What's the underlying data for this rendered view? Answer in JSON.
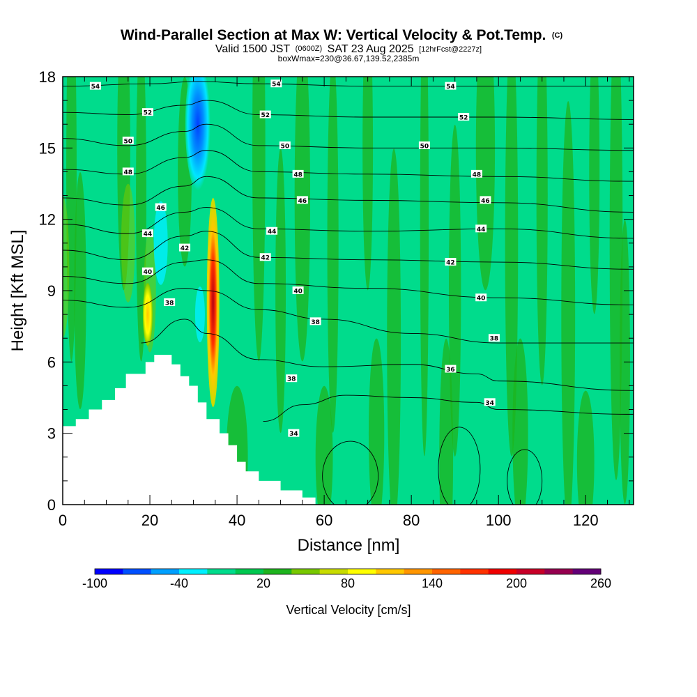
{
  "title": {
    "main": "Wind-Parallel Section at Max W: Vertical Velocity & Pot.Temp.",
    "main_tag": "(C)",
    "valid_a": "Valid 1500 JST",
    "valid_utc": "(0600Z)",
    "valid_b": "SAT 23 Aug 2025",
    "fcst": "[12hrFcst@2227z]",
    "box": "boxWmax=230@36.67,139.52,2385m"
  },
  "chart_data": {
    "type": "heatmap",
    "xlabel": "Distance [nm]",
    "ylabel": "Height [Kft MSL]",
    "xlim": [
      0,
      131
    ],
    "ylim": [
      0,
      18
    ],
    "x_ticks": [
      0,
      20,
      40,
      60,
      80,
      100,
      120
    ],
    "y_ticks": [
      0,
      3,
      6,
      9,
      12,
      15,
      18
    ],
    "x_tick_labels": [
      "0",
      "20",
      "40",
      "60",
      "80",
      "100",
      "120"
    ],
    "y_tick_labels": [
      "0",
      "3",
      "6",
      "9",
      "12",
      "15",
      "18"
    ],
    "background_color": "#00dc8c",
    "terrain_profile": [
      [
        0,
        3.3
      ],
      [
        3,
        3.6
      ],
      [
        6,
        4.0
      ],
      [
        9,
        4.4
      ],
      [
        12,
        4.9
      ],
      [
        14.5,
        5.5
      ],
      [
        17,
        5.5
      ],
      [
        19,
        6.0
      ],
      [
        21,
        6.3
      ],
      [
        24,
        6.3
      ],
      [
        25,
        5.9
      ],
      [
        27,
        5.4
      ],
      [
        29,
        5.0
      ],
      [
        31,
        4.3
      ],
      [
        33,
        3.6
      ],
      [
        36,
        3.0
      ],
      [
        38,
        2.5
      ],
      [
        40,
        1.8
      ],
      [
        42,
        1.4
      ],
      [
        45,
        1.0
      ],
      [
        50,
        0.6
      ],
      [
        55,
        0.3
      ],
      [
        58,
        0.3
      ],
      [
        58,
        0
      ]
    ],
    "velocity_features": [
      {
        "name": "downdraft-upper",
        "x": 31,
        "y": 16.0,
        "value": -90
      },
      {
        "name": "updraft-core",
        "x": 34.5,
        "y": 10.5,
        "value": 230
      },
      {
        "name": "updraft-west",
        "x": 19.5,
        "y": 8.0,
        "value": 80
      },
      {
        "name": "downdraft-west",
        "x": 22,
        "y": 11.0,
        "value": -40
      }
    ],
    "theta_contours": [
      {
        "level": 54,
        "label": "54",
        "points": [
          [
            0,
            17.6
          ],
          [
            20,
            17.7
          ],
          [
            31,
            17.8
          ],
          [
            45,
            17.7
          ],
          [
            70,
            17.6
          ],
          [
            100,
            17.6
          ],
          [
            131,
            17.6
          ]
        ]
      },
      {
        "level": 52,
        "label": "52",
        "points": [
          [
            0,
            16.5
          ],
          [
            15,
            16.4
          ],
          [
            28,
            16.8
          ],
          [
            33,
            17.0
          ],
          [
            45,
            16.4
          ],
          [
            70,
            16.3
          ],
          [
            100,
            16.3
          ],
          [
            131,
            16.2
          ]
        ]
      },
      {
        "level": 50,
        "label": "50",
        "points": [
          [
            0,
            15.4
          ],
          [
            15,
            15.1
          ],
          [
            28,
            15.7
          ],
          [
            33,
            16.0
          ],
          [
            45,
            15.1
          ],
          [
            70,
            15.0
          ],
          [
            100,
            15.0
          ],
          [
            131,
            14.9
          ]
        ]
      },
      {
        "level": 48,
        "label": "48",
        "points": [
          [
            0,
            14.1
          ],
          [
            15,
            13.9
          ],
          [
            28,
            14.6
          ],
          [
            33,
            14.9
          ],
          [
            45,
            14.0
          ],
          [
            70,
            13.9
          ],
          [
            100,
            13.8
          ],
          [
            131,
            13.6
          ]
        ]
      },
      {
        "level": 46,
        "label": "46",
        "points": [
          [
            0,
            12.9
          ],
          [
            15,
            12.6
          ],
          [
            28,
            13.4
          ],
          [
            33,
            13.8
          ],
          [
            45,
            12.9
          ],
          [
            70,
            12.8
          ],
          [
            100,
            12.7
          ],
          [
            131,
            12.3
          ]
        ]
      },
      {
        "level": 44,
        "label": "44",
        "points": [
          [
            0,
            11.8
          ],
          [
            15,
            11.4
          ],
          [
            28,
            12.3
          ],
          [
            33,
            12.5
          ],
          [
            45,
            11.6
          ],
          [
            70,
            11.5
          ],
          [
            100,
            11.6
          ],
          [
            131,
            11.2
          ]
        ]
      },
      {
        "level": 42,
        "label": "42",
        "points": [
          [
            0,
            10.7
          ],
          [
            15,
            10.3
          ],
          [
            28,
            11.3
          ],
          [
            33,
            11.5
          ],
          [
            45,
            10.4
          ],
          [
            70,
            10.3
          ],
          [
            100,
            10.2
          ],
          [
            131,
            9.9
          ]
        ]
      },
      {
        "level": 40,
        "label": "40",
        "points": [
          [
            0,
            9.6
          ],
          [
            15,
            9.3
          ],
          [
            28,
            10.2
          ],
          [
            33,
            10.3
          ],
          [
            45,
            9.3
          ],
          [
            70,
            9.1
          ],
          [
            100,
            8.7
          ],
          [
            131,
            8.4
          ]
        ]
      },
      {
        "level": 38,
        "label": "38",
        "points": [
          [
            0,
            8.6
          ],
          [
            15,
            8.3
          ],
          [
            28,
            9.1
          ],
          [
            33,
            9.0
          ],
          [
            45,
            8.2
          ],
          [
            60,
            7.8
          ],
          [
            80,
            7.2
          ],
          [
            100,
            6.8
          ],
          [
            131,
            6.8
          ]
        ]
      },
      {
        "level": 36,
        "label": "36",
        "points": [
          [
            18,
            6.8
          ],
          [
            28,
            7.8
          ],
          [
            33,
            7.2
          ],
          [
            45,
            6.1
          ],
          [
            60,
            5.8
          ],
          [
            80,
            5.9
          ],
          [
            95,
            5.5
          ],
          [
            100,
            5.2
          ],
          [
            131,
            4.8
          ]
        ]
      },
      {
        "level": 34,
        "label": "34",
        "points": [
          [
            46,
            3.5
          ],
          [
            55,
            4.2
          ],
          [
            65,
            4.6
          ],
          [
            80,
            4.5
          ],
          [
            95,
            4.3
          ],
          [
            100,
            4.0
          ],
          [
            131,
            3.8
          ]
        ]
      }
    ],
    "contour_labels": [
      {
        "text": "54",
        "x": 7.5,
        "y": 17.6
      },
      {
        "text": "54",
        "x": 49,
        "y": 17.7
      },
      {
        "text": "54",
        "x": 89,
        "y": 17.6
      },
      {
        "text": "52",
        "x": 19.5,
        "y": 16.5
      },
      {
        "text": "52",
        "x": 46.5,
        "y": 16.4
      },
      {
        "text": "52",
        "x": 92,
        "y": 16.3
      },
      {
        "text": "50",
        "x": 15,
        "y": 15.3
      },
      {
        "text": "50",
        "x": 51,
        "y": 15.1
      },
      {
        "text": "50",
        "x": 83,
        "y": 15.1
      },
      {
        "text": "48",
        "x": 15,
        "y": 14.0
      },
      {
        "text": "48",
        "x": 54,
        "y": 13.9
      },
      {
        "text": "48",
        "x": 95,
        "y": 13.9
      },
      {
        "text": "46",
        "x": 22.5,
        "y": 12.5
      },
      {
        "text": "46",
        "x": 55,
        "y": 12.8
      },
      {
        "text": "46",
        "x": 97,
        "y": 12.8
      },
      {
        "text": "44",
        "x": 19.5,
        "y": 11.4
      },
      {
        "text": "44",
        "x": 48,
        "y": 11.5
      },
      {
        "text": "44",
        "x": 96,
        "y": 11.6
      },
      {
        "text": "42",
        "x": 28,
        "y": 10.8
      },
      {
        "text": "42",
        "x": 46.5,
        "y": 10.4
      },
      {
        "text": "42",
        "x": 89,
        "y": 10.2
      },
      {
        "text": "40",
        "x": 19.5,
        "y": 9.8
      },
      {
        "text": "40",
        "x": 54,
        "y": 9.0
      },
      {
        "text": "40",
        "x": 96,
        "y": 8.7
      },
      {
        "text": "38",
        "x": 24.5,
        "y": 8.5
      },
      {
        "text": "38",
        "x": 58,
        "y": 7.7
      },
      {
        "text": "38",
        "x": 99,
        "y": 7.0
      },
      {
        "text": "38",
        "x": 52.5,
        "y": 5.3
      },
      {
        "text": "36",
        "x": 89,
        "y": 5.7
      },
      {
        "text": "34",
        "x": 98,
        "y": 4.3
      },
      {
        "text": "34",
        "x": 53,
        "y": 3.0
      }
    ],
    "colorbar": {
      "title": "Vertical Velocity [cm/s]",
      "labels": [
        "-100",
        "-40",
        "20",
        "80",
        "140",
        "200",
        "260"
      ],
      "colors": [
        "#0000ff",
        "#0050ff",
        "#00a0ff",
        "#00f0ff",
        "#00dc8c",
        "#00c850",
        "#1eb41e",
        "#78c800",
        "#c8dc00",
        "#ffff00",
        "#ffc800",
        "#ff9600",
        "#ff6400",
        "#ff3200",
        "#f00000",
        "#c80028",
        "#960050",
        "#640078"
      ]
    }
  }
}
